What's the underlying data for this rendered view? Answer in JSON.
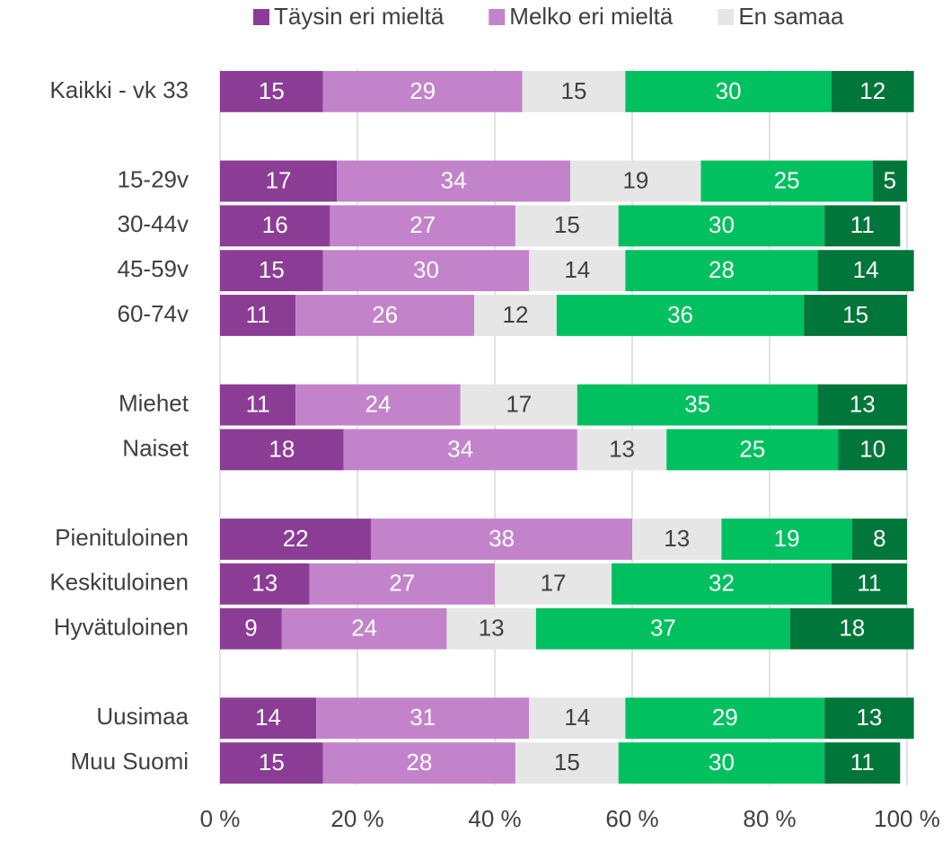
{
  "chart_data": {
    "type": "stacked-bar-horizontal",
    "categories": [
      "Kaikki - vk 33",
      null,
      "15-29v",
      "30-44v",
      "45-59v",
      "60-74v",
      null,
      "Miehet",
      "Naiset",
      null,
      "Pienituloinen",
      "Keskituloinen",
      "Hyvätuloinen",
      null,
      "Uusimaa",
      "Muu Suomi"
    ],
    "series": [
      {
        "name": "Täysin eri mieltä",
        "color": "#8b3d95",
        "values": [
          15,
          null,
          17,
          16,
          15,
          11,
          null,
          11,
          18,
          null,
          22,
          13,
          9,
          null,
          14,
          15
        ]
      },
      {
        "name": "Melko eri mieltä",
        "color": "#c383cb",
        "values": [
          29,
          null,
          34,
          27,
          30,
          26,
          null,
          24,
          34,
          null,
          38,
          27,
          24,
          null,
          31,
          28
        ]
      },
      {
        "name": "En samaa",
        "color": "#e6e6e6",
        "values": [
          15,
          null,
          19,
          15,
          14,
          12,
          null,
          17,
          13,
          null,
          13,
          17,
          13,
          null,
          14,
          15
        ]
      },
      {
        "name": null,
        "color": "#00c060",
        "values": [
          30,
          null,
          25,
          30,
          28,
          36,
          null,
          35,
          25,
          null,
          19,
          32,
          37,
          null,
          29,
          30
        ]
      },
      {
        "name": null,
        "color": "#00763a",
        "values": [
          12,
          null,
          5,
          11,
          14,
          15,
          null,
          13,
          10,
          null,
          8,
          11,
          18,
          null,
          13,
          11
        ]
      }
    ],
    "xlim": [
      0,
      100
    ],
    "xticks": [
      {
        "value": 0,
        "label": "0 %"
      },
      {
        "value": 20,
        "label": "20 %"
      },
      {
        "value": 40,
        "label": "40 %"
      },
      {
        "value": 60,
        "label": "60 %"
      },
      {
        "value": 80,
        "label": "80 %"
      },
      {
        "value": 100,
        "label": "100 %"
      }
    ],
    "grid": true,
    "legend": "top"
  }
}
